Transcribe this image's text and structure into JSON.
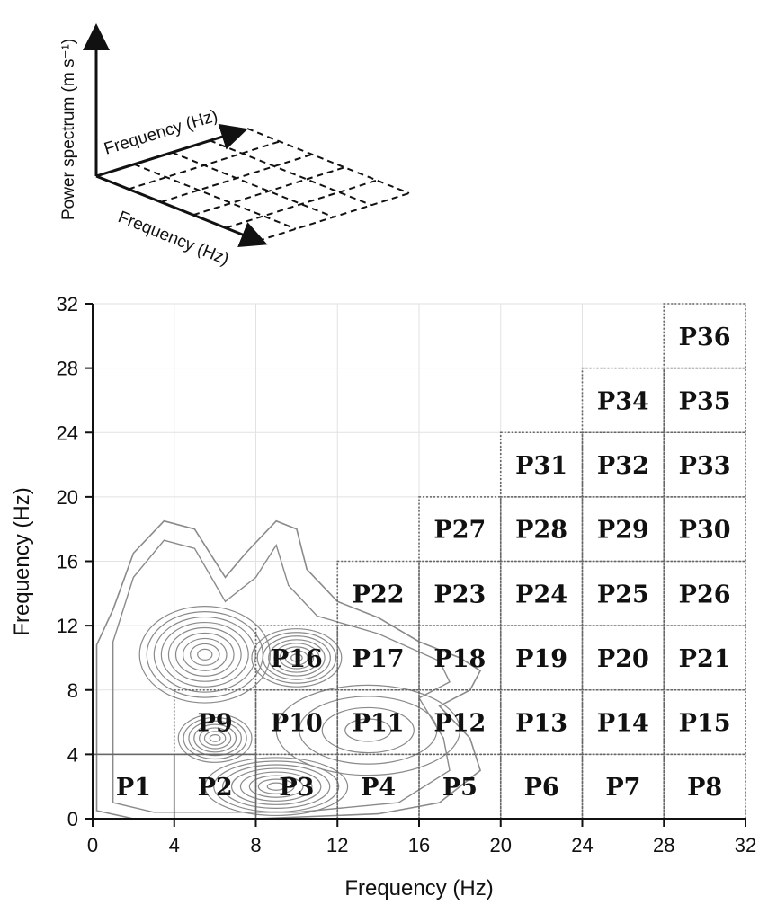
{
  "inset": {
    "vertical_axis_label": "Power spectrum (m s⁻¹)",
    "depth_axis_label": "Frequency (Hz)",
    "horizontal_axis_label": "Frequency (Hz)"
  },
  "chart_data": {
    "type": "heatmap",
    "xlabel": "Frequency (Hz)",
    "ylabel": "Frequency (Hz)",
    "xlim": [
      0,
      32
    ],
    "ylim": [
      0,
      32
    ],
    "x_ticks": [
      "0",
      "4",
      "8",
      "12",
      "16",
      "20",
      "24",
      "28",
      "32"
    ],
    "y_ticks": [
      "0",
      "4",
      "8",
      "12",
      "16",
      "20",
      "24",
      "28",
      "32"
    ],
    "grid": true,
    "contour_color": "#8a8a8a",
    "partition_line_color": "#666666",
    "regions": [
      {
        "label": "P1",
        "x": [
          0,
          4
        ],
        "y": [
          0,
          4
        ]
      },
      {
        "label": "P2",
        "x": [
          4,
          8
        ],
        "y": [
          0,
          4
        ]
      },
      {
        "label": "P3",
        "x": [
          8,
          12
        ],
        "y": [
          0,
          4
        ]
      },
      {
        "label": "P4",
        "x": [
          12,
          16
        ],
        "y": [
          0,
          4
        ]
      },
      {
        "label": "P5",
        "x": [
          16,
          20
        ],
        "y": [
          0,
          4
        ]
      },
      {
        "label": "P6",
        "x": [
          20,
          24
        ],
        "y": [
          0,
          4
        ]
      },
      {
        "label": "P7",
        "x": [
          24,
          28
        ],
        "y": [
          0,
          4
        ]
      },
      {
        "label": "P8",
        "x": [
          28,
          32
        ],
        "y": [
          0,
          4
        ]
      },
      {
        "label": "P9",
        "x": [
          4,
          8
        ],
        "y": [
          4,
          8
        ]
      },
      {
        "label": "P10",
        "x": [
          8,
          12
        ],
        "y": [
          4,
          8
        ]
      },
      {
        "label": "P11",
        "x": [
          12,
          16
        ],
        "y": [
          4,
          8
        ]
      },
      {
        "label": "P12",
        "x": [
          16,
          20
        ],
        "y": [
          4,
          8
        ]
      },
      {
        "label": "P13",
        "x": [
          20,
          24
        ],
        "y": [
          4,
          8
        ]
      },
      {
        "label": "P14",
        "x": [
          24,
          28
        ],
        "y": [
          4,
          8
        ]
      },
      {
        "label": "P15",
        "x": [
          28,
          32
        ],
        "y": [
          4,
          8
        ]
      },
      {
        "label": "P16",
        "x": [
          8,
          12
        ],
        "y": [
          8,
          12
        ]
      },
      {
        "label": "P17",
        "x": [
          12,
          16
        ],
        "y": [
          8,
          12
        ]
      },
      {
        "label": "P18",
        "x": [
          16,
          20
        ],
        "y": [
          8,
          12
        ]
      },
      {
        "label": "P19",
        "x": [
          20,
          24
        ],
        "y": [
          8,
          12
        ]
      },
      {
        "label": "P20",
        "x": [
          24,
          28
        ],
        "y": [
          8,
          12
        ]
      },
      {
        "label": "P21",
        "x": [
          28,
          32
        ],
        "y": [
          8,
          12
        ]
      },
      {
        "label": "P22",
        "x": [
          12,
          16
        ],
        "y": [
          12,
          16
        ]
      },
      {
        "label": "P23",
        "x": [
          16,
          20
        ],
        "y": [
          12,
          16
        ]
      },
      {
        "label": "P24",
        "x": [
          20,
          24
        ],
        "y": [
          12,
          16
        ]
      },
      {
        "label": "P25",
        "x": [
          24,
          28
        ],
        "y": [
          12,
          16
        ]
      },
      {
        "label": "P26",
        "x": [
          28,
          32
        ],
        "y": [
          12,
          16
        ]
      },
      {
        "label": "P27",
        "x": [
          16,
          20
        ],
        "y": [
          16,
          20
        ]
      },
      {
        "label": "P28",
        "x": [
          20,
          24
        ],
        "y": [
          16,
          20
        ]
      },
      {
        "label": "P29",
        "x": [
          24,
          28
        ],
        "y": [
          16,
          20
        ]
      },
      {
        "label": "P30",
        "x": [
          28,
          32
        ],
        "y": [
          16,
          20
        ]
      },
      {
        "label": "P31",
        "x": [
          20,
          24
        ],
        "y": [
          20,
          24
        ]
      },
      {
        "label": "P32",
        "x": [
          24,
          28
        ],
        "y": [
          20,
          24
        ]
      },
      {
        "label": "P33",
        "x": [
          28,
          32
        ],
        "y": [
          20,
          24
        ]
      },
      {
        "label": "P34",
        "x": [
          24,
          28
        ],
        "y": [
          24,
          28
        ]
      },
      {
        "label": "P35",
        "x": [
          28,
          32
        ],
        "y": [
          24,
          28
        ]
      },
      {
        "label": "P36",
        "x": [
          28,
          32
        ],
        "y": [
          28,
          32
        ]
      }
    ],
    "contour_peaks": [
      {
        "x": 5.5,
        "y": 10.2
      },
      {
        "x": 6.0,
        "y": 5.0
      },
      {
        "x": 10.0,
        "y": 10.0
      },
      {
        "x": 9.0,
        "y": 2.0
      }
    ]
  }
}
